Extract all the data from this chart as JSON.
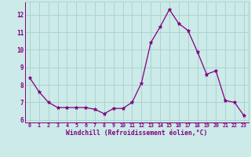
{
  "x": [
    0,
    1,
    2,
    3,
    4,
    5,
    6,
    7,
    8,
    9,
    10,
    11,
    12,
    13,
    14,
    15,
    16,
    17,
    18,
    19,
    20,
    21,
    22,
    23
  ],
  "y": [
    8.4,
    7.6,
    7.0,
    6.7,
    6.7,
    6.7,
    6.7,
    6.6,
    6.35,
    6.65,
    6.65,
    7.0,
    8.1,
    10.4,
    11.3,
    12.3,
    11.5,
    11.1,
    9.9,
    8.6,
    8.8,
    7.1,
    7.0,
    6.25
  ],
  "line_color": "#800080",
  "marker": "*",
  "marker_size": 3.5,
  "bg_color": "#cceae8",
  "grid_color": "#aad4d0",
  "xlabel": "Windchill (Refroidissement éolien,°C)",
  "xlabel_color": "#800080",
  "tick_color": "#800080",
  "ylabel_ticks": [
    6,
    7,
    8,
    9,
    10,
    11,
    12
  ],
  "xlim": [
    -0.5,
    23.5
  ],
  "ylim": [
    5.85,
    12.75
  ],
  "title": ""
}
